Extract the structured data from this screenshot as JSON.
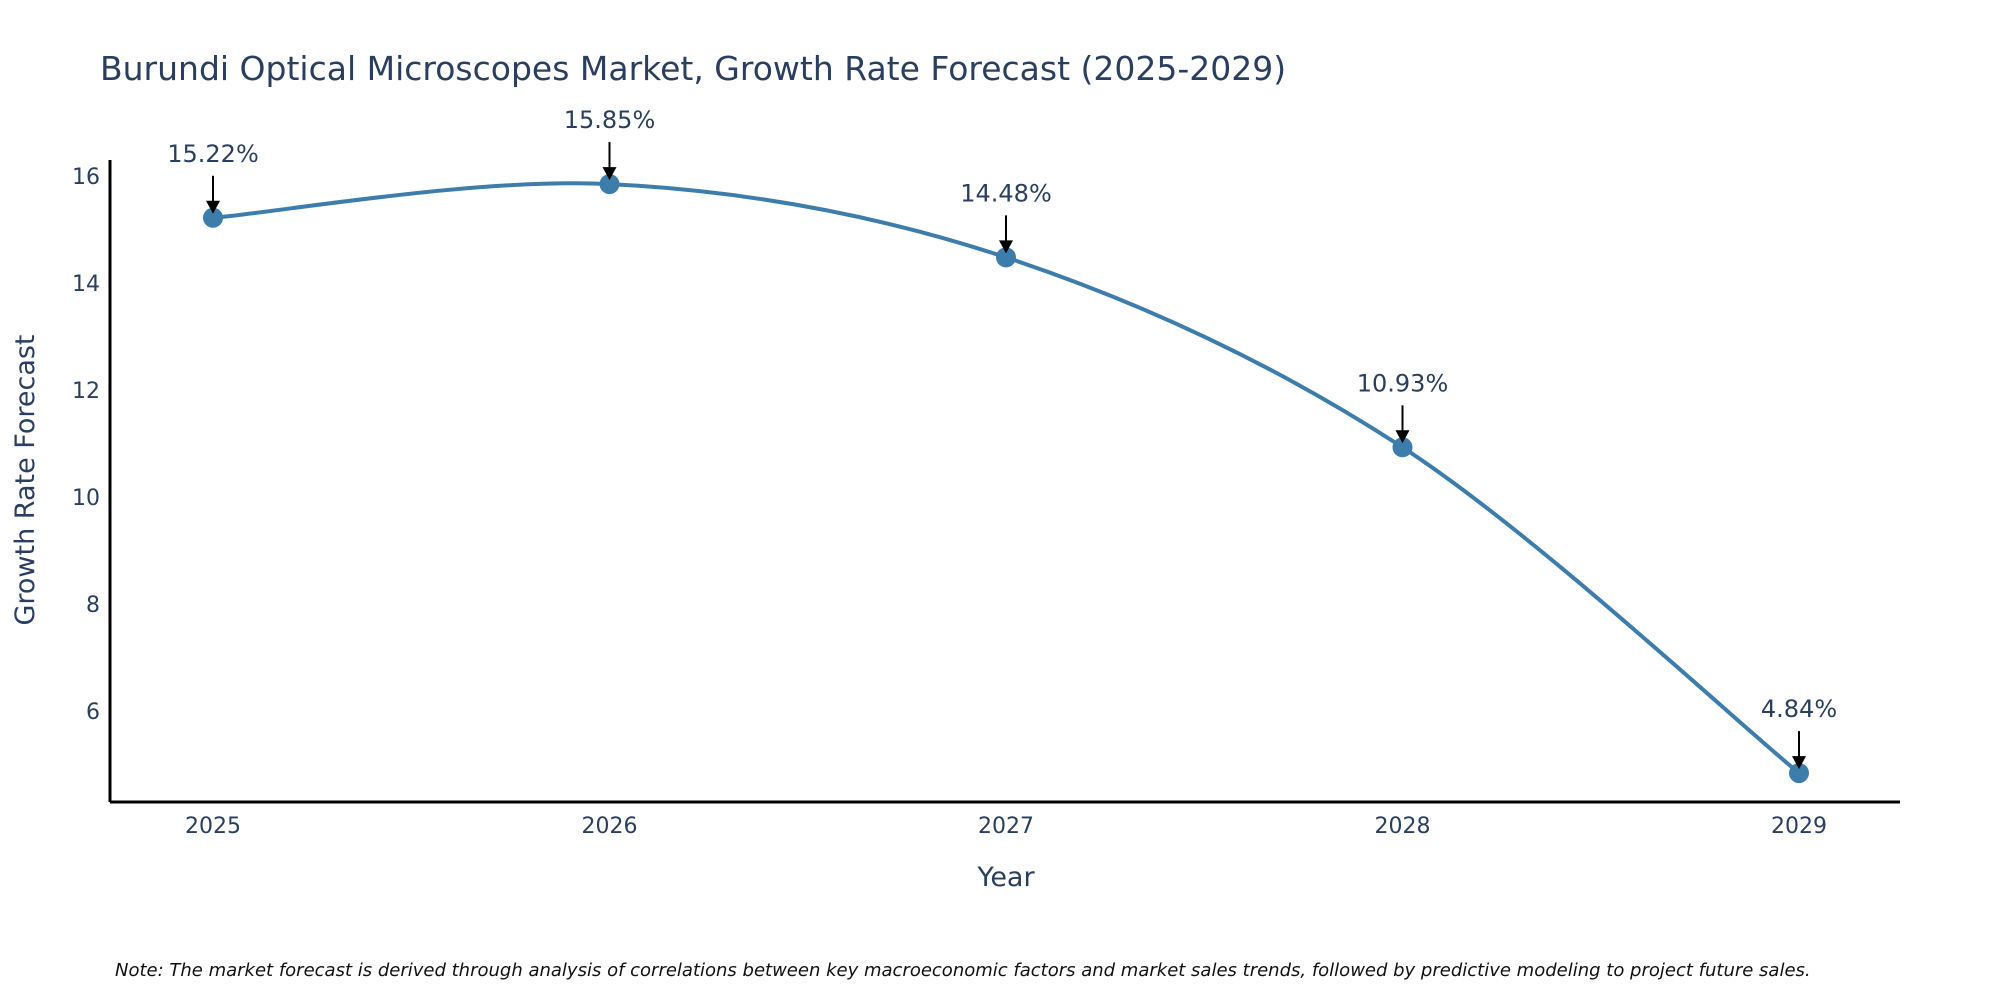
{
  "chart_data": {
    "type": "line",
    "title": "Burundi Optical Microscopes Market, Growth Rate Forecast (2025-2029)",
    "xlabel": "Year",
    "ylabel": "Growth Rate Forecast",
    "categories": [
      "2025",
      "2026",
      "2027",
      "2028",
      "2029"
    ],
    "values": [
      15.22,
      15.85,
      14.48,
      10.93,
      4.84
    ],
    "data_labels": [
      "15.22%",
      "15.85%",
      "14.48%",
      "10.93%",
      "4.84%"
    ],
    "ylim": [
      4.3,
      16.3
    ],
    "yticks": [
      6,
      8,
      10,
      12,
      14,
      16
    ],
    "grid": false,
    "line_shape": "spline",
    "line_color": "#3d7dab",
    "marker_color": "#3d7dab",
    "note": "Note: The market forecast is derived through analysis of correlations between key macroeconomic factors and market sales trends, followed by predictive modeling to project future sales."
  }
}
